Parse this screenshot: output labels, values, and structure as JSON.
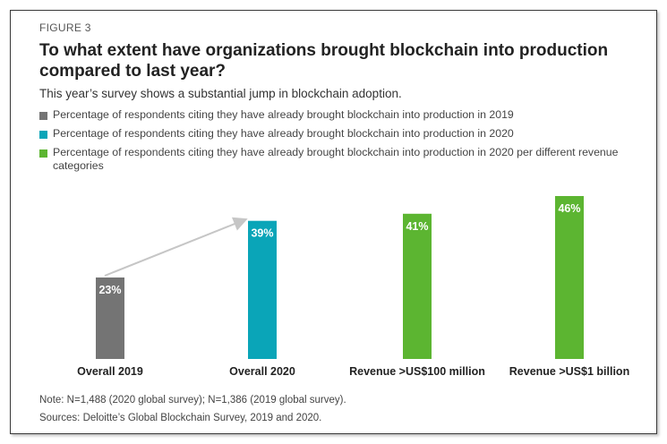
{
  "figure_label": "FIGURE 3",
  "title": "To what extent have organizations brought blockchain into production compared to last year?",
  "subtitle": "This year’s survey shows a substantial jump in blockchain adoption.",
  "legend": [
    {
      "label": "Percentage of respondents citing they have already brought blockchain into production in 2019",
      "color": "#747474"
    },
    {
      "label": "Percentage of respondents citing they have already brought blockchain into production in 2020",
      "color": "#0aa5b8"
    },
    {
      "label": "Percentage of respondents citing they have already brought blockchain into production in 2020 per different revenue categories",
      "color": "#5cb531"
    }
  ],
  "chart_data": {
    "type": "bar",
    "categories": [
      "Overall 2019",
      "Overall 2020",
      "Revenue >US$100 million",
      "Revenue >US$1 billion"
    ],
    "values": [
      23,
      39,
      41,
      46
    ],
    "data_labels": [
      "23%",
      "39%",
      "41%",
      "46%"
    ],
    "colors": [
      "#747474",
      "#0aa5b8",
      "#5cb531",
      "#5cb531"
    ],
    "ylim": [
      0,
      46
    ],
    "grid": false,
    "arrow": {
      "from": "Overall 2019",
      "to": "Overall 2020",
      "color": "#c6c6c6"
    }
  },
  "notes": [
    "Note: N=1,488 (2020 global survey); N=1,386 (2019 global survey).",
    "Sources: Deloitte’s Global Blockchain Survey, 2019 and 2020."
  ]
}
